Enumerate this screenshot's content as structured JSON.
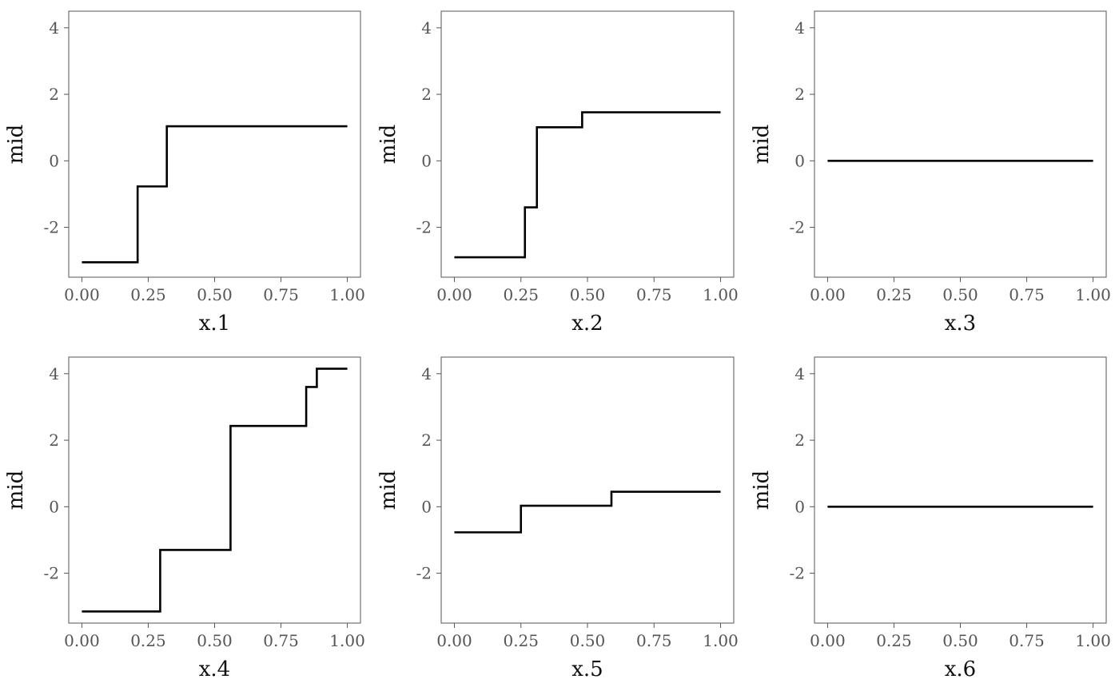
{
  "chart_data": [
    {
      "type": "line",
      "step": true,
      "xlabel": "x.1",
      "ylabel": "mid",
      "xlim": [
        0,
        1
      ],
      "ylim": [
        -3.5,
        4.5
      ],
      "xticks": [
        "0.00",
        "0.25",
        "0.50",
        "0.75",
        "1.00"
      ],
      "yticks": [
        "-2",
        "0",
        "2",
        "4"
      ],
      "grid": false,
      "series": [
        {
          "x": [
            0,
            0.21,
            0.32,
            1.0
          ],
          "y": [
            -3.05,
            -0.77,
            1.04,
            1.04
          ]
        }
      ]
    },
    {
      "type": "line",
      "step": true,
      "xlabel": "x.2",
      "ylabel": "mid",
      "xlim": [
        0,
        1
      ],
      "ylim": [
        -3.5,
        4.5
      ],
      "xticks": [
        "0.00",
        "0.25",
        "0.50",
        "0.75",
        "1.00"
      ],
      "yticks": [
        "-2",
        "0",
        "2",
        "4"
      ],
      "grid": false,
      "series": [
        {
          "x": [
            0,
            0.265,
            0.31,
            0.48,
            1.0
          ],
          "y": [
            -2.9,
            -1.4,
            1.01,
            1.46,
            1.46
          ]
        }
      ]
    },
    {
      "type": "line",
      "step": true,
      "xlabel": "x.3",
      "ylabel": "mid",
      "xlim": [
        0,
        1
      ],
      "ylim": [
        -3.5,
        4.5
      ],
      "xticks": [
        "0.00",
        "0.25",
        "0.50",
        "0.75",
        "1.00"
      ],
      "yticks": [
        "-2",
        "0",
        "2",
        "4"
      ],
      "grid": false,
      "series": [
        {
          "x": [
            0,
            1.0
          ],
          "y": [
            0,
            0
          ]
        }
      ]
    },
    {
      "type": "line",
      "step": true,
      "xlabel": "x.4",
      "ylabel": "mid",
      "xlim": [
        0,
        1
      ],
      "ylim": [
        -3.5,
        4.5
      ],
      "xticks": [
        "0.00",
        "0.25",
        "0.50",
        "0.75",
        "1.00"
      ],
      "yticks": [
        "-2",
        "0",
        "2",
        "4"
      ],
      "grid": false,
      "series": [
        {
          "x": [
            0,
            0.295,
            0.56,
            0.845,
            0.885,
            1.0
          ],
          "y": [
            -3.15,
            -1.3,
            2.43,
            3.6,
            4.15,
            4.15
          ]
        }
      ]
    },
    {
      "type": "line",
      "step": true,
      "xlabel": "x.5",
      "ylabel": "mid",
      "xlim": [
        0,
        1
      ],
      "ylim": [
        -3.5,
        4.5
      ],
      "xticks": [
        "0.00",
        "0.25",
        "0.50",
        "0.75",
        "1.00"
      ],
      "yticks": [
        "-2",
        "0",
        "2",
        "4"
      ],
      "grid": false,
      "series": [
        {
          "x": [
            0,
            0.25,
            0.59,
            1.0
          ],
          "y": [
            -0.77,
            0.03,
            0.45,
            0.45
          ]
        }
      ]
    },
    {
      "type": "line",
      "step": true,
      "xlabel": "x.6",
      "ylabel": "mid",
      "xlim": [
        0,
        1
      ],
      "ylim": [
        -3.5,
        4.5
      ],
      "xticks": [
        "0.00",
        "0.25",
        "0.50",
        "0.75",
        "1.00"
      ],
      "yticks": [
        "-2",
        "0",
        "2",
        "4"
      ],
      "grid": false,
      "series": [
        {
          "x": [
            0,
            1.0
          ],
          "y": [
            0,
            0
          ]
        }
      ]
    }
  ],
  "colors": {
    "line": "#000000",
    "frame": "#555555",
    "tick_label": "#555555",
    "axis_title": "#111111"
  }
}
